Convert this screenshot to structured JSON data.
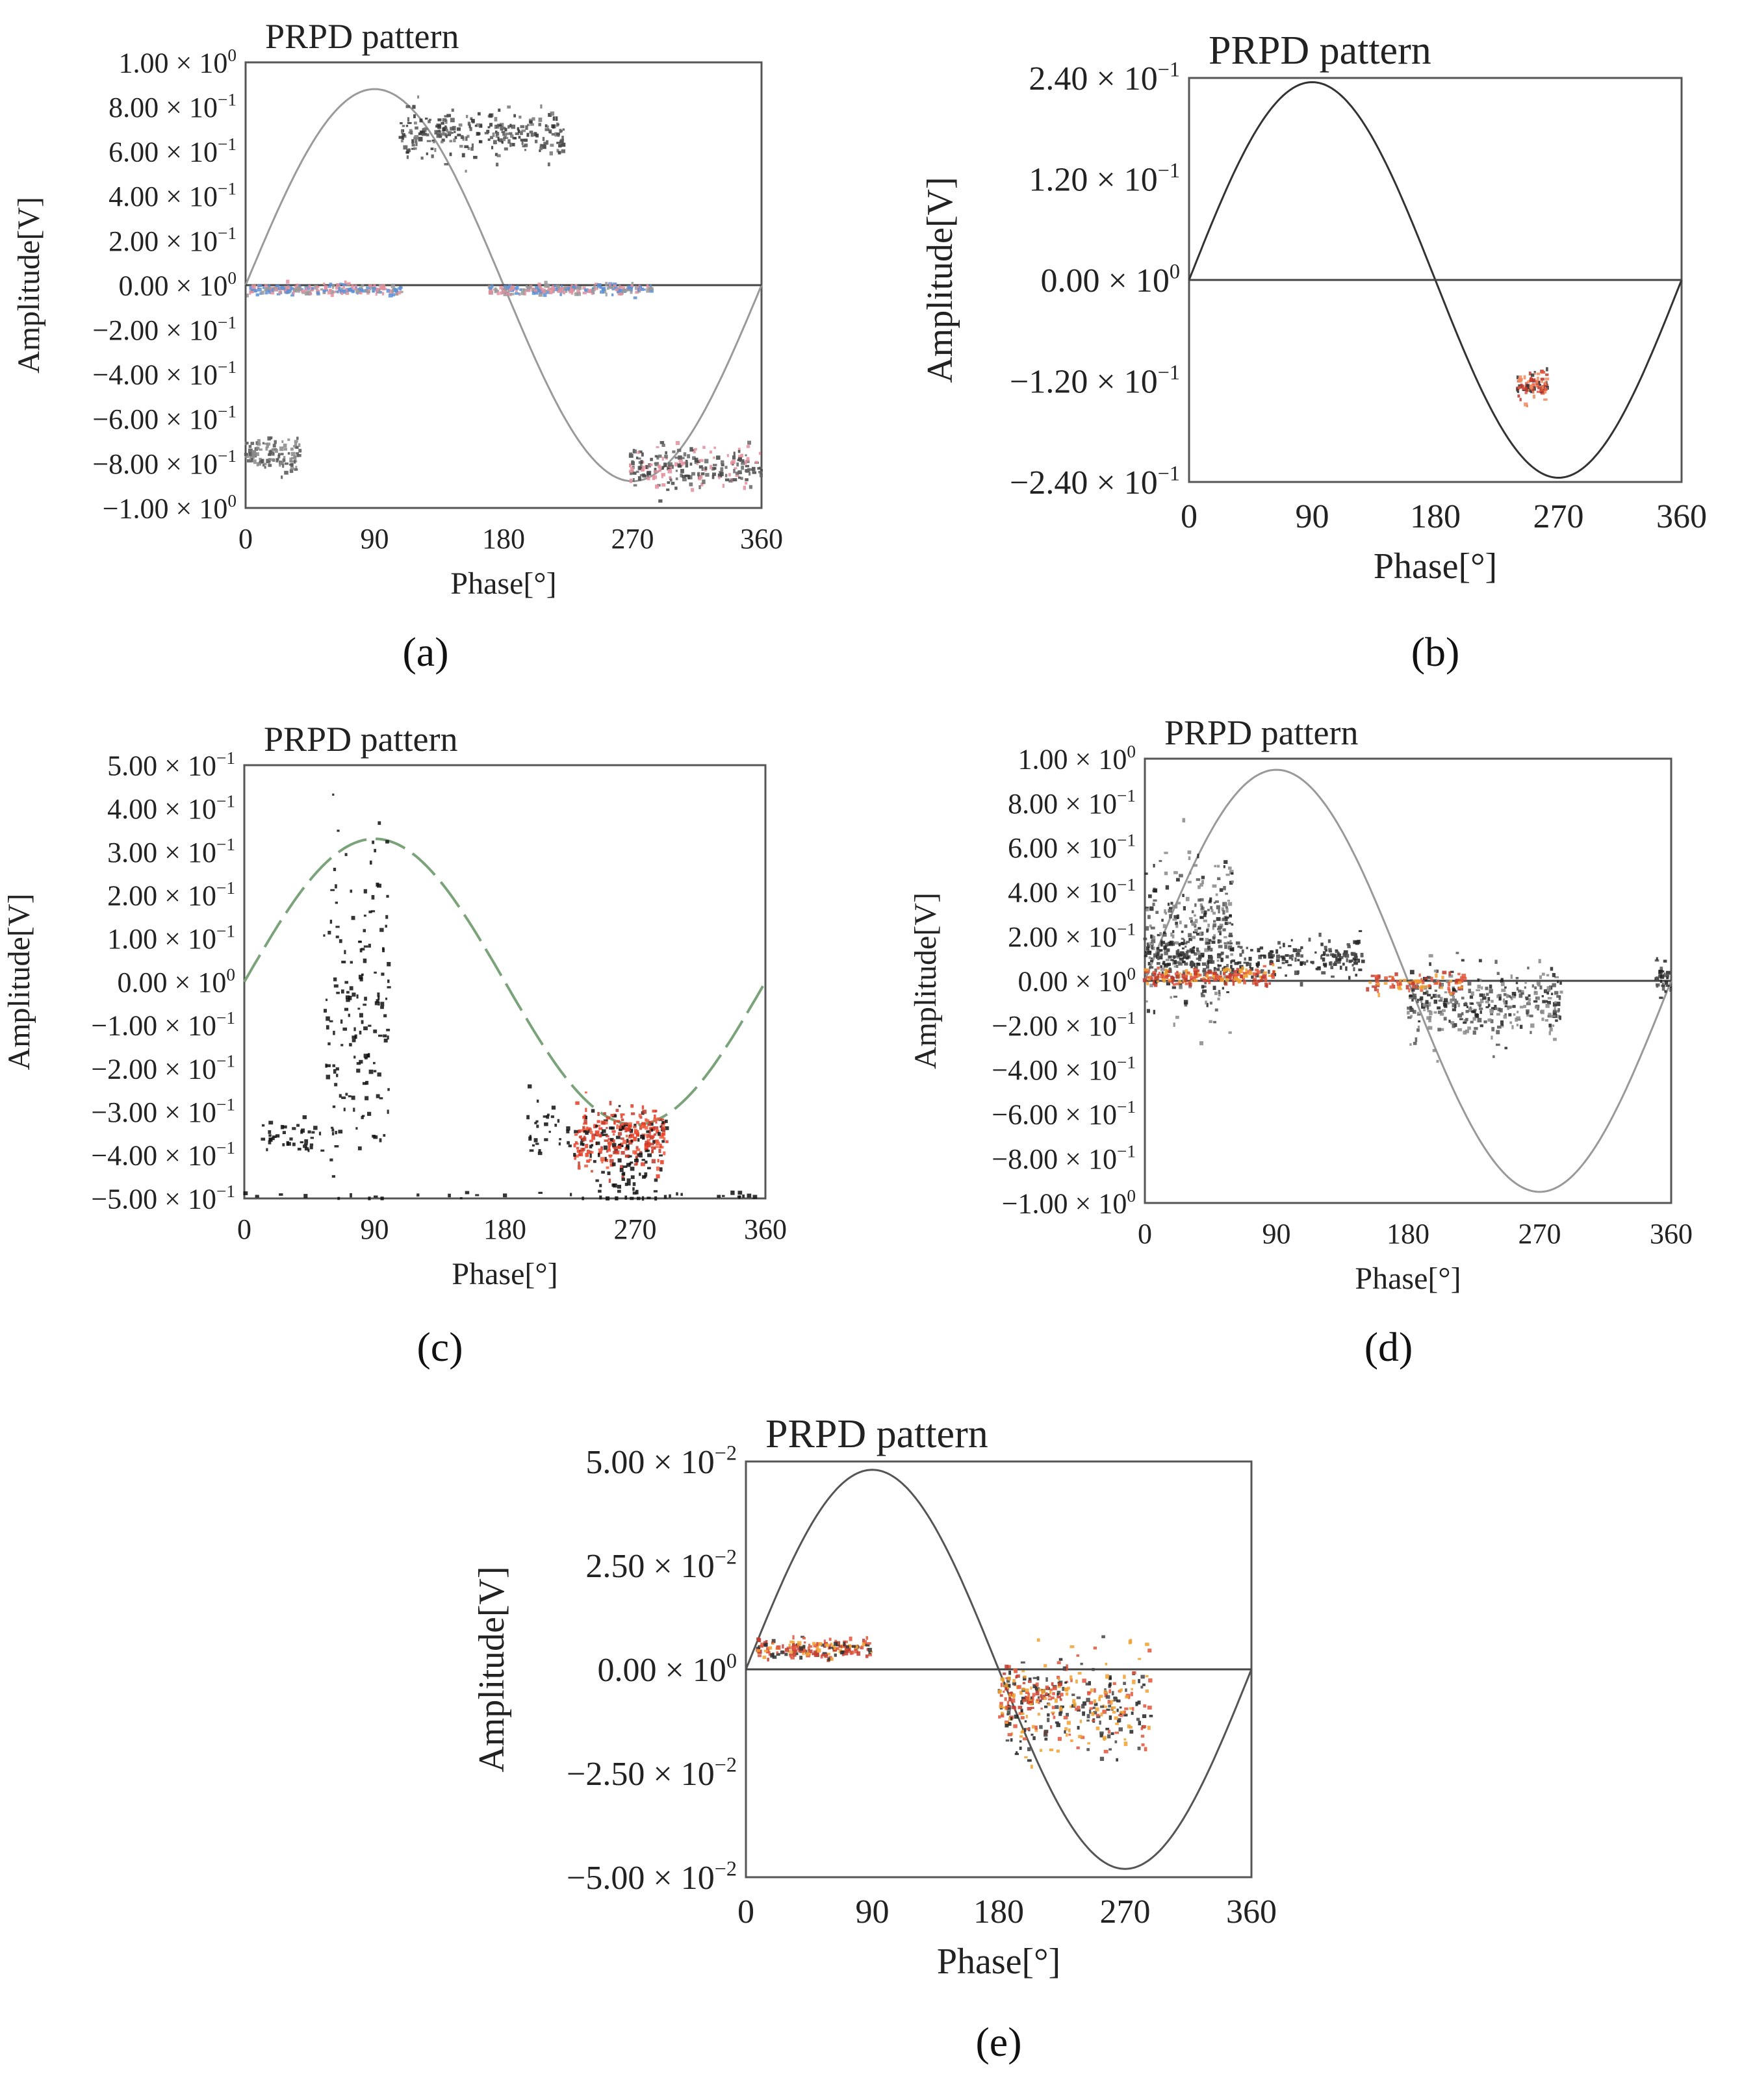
{
  "chart_data": [
    {
      "panel": "(a)",
      "type": "scatter",
      "title": "PRPD pattern",
      "xlabel": "Phase[°]",
      "ylabel": "Amplitude[V]",
      "xlim": [
        0,
        360
      ],
      "ylim": [
        -1.0,
        1.0
      ],
      "x_ticks": [
        0,
        90,
        180,
        270,
        360
      ],
      "x_tick_labels": [
        "0",
        "90",
        "180",
        "270",
        "360"
      ],
      "y_ticks": [
        1.0,
        0.8,
        0.6,
        0.4,
        0.2,
        0.0,
        -0.2,
        -0.4,
        -0.6,
        -0.8,
        -1.0
      ],
      "y_tick_labels": [
        {
          "m": "1.00",
          "e": "0"
        },
        {
          "m": "8.00",
          "e": "−1"
        },
        {
          "m": "6.00",
          "e": "−1"
        },
        {
          "m": "4.00",
          "e": "−1"
        },
        {
          "m": "2.00",
          "e": "−1"
        },
        {
          "m": "0.00",
          "e": "0"
        },
        {
          "m": "−2.00",
          "e": "−1"
        },
        {
          "m": "−4.00",
          "e": "−1"
        },
        {
          "m": "−6.00",
          "e": "−1"
        },
        {
          "m": "−8.00",
          "e": "−1"
        },
        {
          "m": "−1.00",
          "e": "0"
        }
      ],
      "reference_sine": {
        "amplitude": 0.88,
        "style": "solid",
        "color": "#9a9a9a"
      },
      "zero_line": true,
      "clusters": [
        {
          "x_range": [
            108,
            222
          ],
          "y_center": 0.68,
          "y_spread": 0.05,
          "count": 260,
          "colors": [
            "#333333",
            "#555555",
            "#777777"
          ]
        },
        {
          "x_range": [
            0,
            110
          ],
          "y_center": -0.02,
          "y_spread": 0.012,
          "count": 220,
          "colors": [
            "#e38f9c",
            "#5c8fd6",
            "#999999"
          ]
        },
        {
          "x_range": [
            170,
            285
          ],
          "y_center": -0.02,
          "y_spread": 0.012,
          "count": 220,
          "colors": [
            "#e38f9c",
            "#5c8fd6",
            "#999999"
          ]
        },
        {
          "x_range": [
            0,
            38
          ],
          "y_center": -0.76,
          "y_spread": 0.04,
          "count": 110,
          "colors": [
            "#555555",
            "#888888"
          ]
        },
        {
          "x_range": [
            268,
            360
          ],
          "y_center": -0.82,
          "y_spread": 0.05,
          "count": 230,
          "colors": [
            "#444444",
            "#666666",
            "#e38f9c"
          ]
        }
      ]
    },
    {
      "panel": "(b)",
      "type": "scatter",
      "title": "PRPD pattern",
      "xlabel": "Phase[°]",
      "ylabel": "Amplitude[V]",
      "xlim": [
        0,
        360
      ],
      "ylim": [
        -0.24,
        0.24
      ],
      "x_ticks": [
        0,
        90,
        180,
        270,
        360
      ],
      "x_tick_labels": [
        "0",
        "90",
        "180",
        "270",
        "360"
      ],
      "y_ticks": [
        0.24,
        0.12,
        0.0,
        -0.12,
        -0.24
      ],
      "y_tick_labels": [
        {
          "m": "2.40",
          "e": "−1"
        },
        {
          "m": "1.20",
          "e": "−1"
        },
        {
          "m": "0.00",
          "e": "0"
        },
        {
          "m": "−1.20",
          "e": "−1"
        },
        {
          "m": "−2.40",
          "e": "−1"
        }
      ],
      "reference_sine": {
        "amplitude": 0.235,
        "style": "solid",
        "color": "#333333"
      },
      "zero_line": true,
      "clusters": [
        {
          "x_range": [
            240,
            262
          ],
          "y_center": -0.125,
          "y_spread": 0.009,
          "count": 90,
          "colors": [
            "#e0553c",
            "#c0392b",
            "#333333",
            "#f08a5d"
          ]
        }
      ]
    },
    {
      "panel": "(c)",
      "type": "scatter",
      "title": "PRPD pattern",
      "xlabel": "Phase[°]",
      "ylabel": "Amplitude[V]",
      "xlim": [
        0,
        360
      ],
      "ylim": [
        -0.5,
        0.5
      ],
      "x_ticks": [
        0,
        90,
        180,
        270,
        360
      ],
      "x_tick_labels": [
        "0",
        "90",
        "180",
        "270",
        "360"
      ],
      "y_ticks": [
        0.5,
        0.4,
        0.3,
        0.2,
        0.1,
        0.0,
        -0.1,
        -0.2,
        -0.3,
        -0.4,
        -0.5
      ],
      "y_tick_labels": [
        {
          "m": "5.00",
          "e": "−1"
        },
        {
          "m": "4.00",
          "e": "−1"
        },
        {
          "m": "3.00",
          "e": "−1"
        },
        {
          "m": "2.00",
          "e": "−1"
        },
        {
          "m": "1.00",
          "e": "−1"
        },
        {
          "m": "0.00",
          "e": "0"
        },
        {
          "m": "−1.00",
          "e": "−1"
        },
        {
          "m": "−2.00",
          "e": "−1"
        },
        {
          "m": "−3.00",
          "e": "−1"
        },
        {
          "m": "−4.00",
          "e": "−1"
        },
        {
          "m": "−5.00",
          "e": "−1"
        }
      ],
      "reference_sine": {
        "amplitude": 0.33,
        "style": "dashed",
        "color": "#7aa37a"
      },
      "zero_line": false,
      "clusters": [
        {
          "x_range": [
            55,
            100
          ],
          "y_center": -0.05,
          "y_spread": 0.2,
          "count": 160,
          "colors": [
            "#111111"
          ]
        },
        {
          "x_range": [
            10,
            55
          ],
          "y_center": -0.36,
          "y_spread": 0.02,
          "count": 40,
          "colors": [
            "#111111"
          ]
        },
        {
          "x_range": [
            195,
            225
          ],
          "y_center": -0.33,
          "y_spread": 0.04,
          "count": 30,
          "colors": [
            "#111111"
          ]
        },
        {
          "x_range": [
            228,
            292
          ],
          "y_center": -0.36,
          "y_spread": 0.035,
          "count": 320,
          "colors": [
            "#e53b25",
            "#f05a3c",
            "#c0392b",
            "#111111"
          ]
        },
        {
          "x_range": [
            240,
            285
          ],
          "y_center": -0.44,
          "y_spread": 0.04,
          "count": 50,
          "colors": [
            "#111111"
          ]
        },
        {
          "x_range": [
            0,
            360
          ],
          "y_center": -0.495,
          "y_spread": 0.004,
          "count": 30,
          "colors": [
            "#111111"
          ]
        }
      ]
    },
    {
      "panel": "(d)",
      "type": "scatter",
      "title": "PRPD pattern",
      "xlabel": "Phase[°]",
      "ylabel": "Amplitude[V]",
      "xlim": [
        0,
        360
      ],
      "ylim": [
        -1.0,
        1.0
      ],
      "x_ticks": [
        0,
        90,
        180,
        270,
        360
      ],
      "x_tick_labels": [
        "0",
        "90",
        "180",
        "270",
        "360"
      ],
      "y_ticks": [
        1.0,
        0.8,
        0.6,
        0.4,
        0.2,
        0.0,
        -0.2,
        -0.4,
        -0.6,
        -0.8,
        -1.0
      ],
      "y_tick_labels": [
        {
          "m": "1.00",
          "e": "0"
        },
        {
          "m": "8.00",
          "e": "−1"
        },
        {
          "m": "6.00",
          "e": "−1"
        },
        {
          "m": "4.00",
          "e": "−1"
        },
        {
          "m": "2.00",
          "e": "−1"
        },
        {
          "m": "0.00",
          "e": "0"
        },
        {
          "m": "−2.00",
          "e": "−1"
        },
        {
          "m": "−4.00",
          "e": "−1"
        },
        {
          "m": "−6.00",
          "e": "−1"
        },
        {
          "m": "−8.00",
          "e": "−1"
        },
        {
          "m": "−1.00",
          "e": "0"
        }
      ],
      "reference_sine": {
        "amplitude": 0.95,
        "style": "solid",
        "color": "#999999"
      },
      "zero_line": true,
      "clusters": [
        {
          "x_range": [
            0,
            60
          ],
          "y_center": 0.2,
          "y_spread": 0.16,
          "count": 320,
          "colors": [
            "#222222",
            "#555555",
            "#888888"
          ]
        },
        {
          "x_range": [
            0,
            150
          ],
          "y_center": 0.1,
          "y_spread": 0.04,
          "count": 260,
          "colors": [
            "#222222",
            "#444444"
          ]
        },
        {
          "x_range": [
            0,
            90
          ],
          "y_center": 0.02,
          "y_spread": 0.02,
          "count": 180,
          "colors": [
            "#e0553c",
            "#f0a030",
            "#c0392b"
          ]
        },
        {
          "x_range": [
            180,
            285
          ],
          "y_center": -0.1,
          "y_spread": 0.08,
          "count": 330,
          "colors": [
            "#222222",
            "#555555",
            "#888888"
          ]
        },
        {
          "x_range": [
            150,
            220
          ],
          "y_center": -0.01,
          "y_spread": 0.02,
          "count": 90,
          "colors": [
            "#e0553c",
            "#f0a030",
            "#c0392b"
          ]
        },
        {
          "x_range": [
            350,
            360
          ],
          "y_center": 0.02,
          "y_spread": 0.04,
          "count": 30,
          "colors": [
            "#222222",
            "#555555"
          ]
        }
      ]
    },
    {
      "panel": "(e)",
      "type": "scatter",
      "title": "PRPD pattern",
      "xlabel": "Phase[°]",
      "ylabel": "Amplitude[V]",
      "xlim": [
        0,
        360
      ],
      "ylim": [
        -0.05,
        0.05
      ],
      "x_ticks": [
        0,
        90,
        180,
        270,
        360
      ],
      "x_tick_labels": [
        "0",
        "90",
        "180",
        "270",
        "360"
      ],
      "y_ticks": [
        0.05,
        0.025,
        0.0,
        -0.025,
        -0.05
      ],
      "y_tick_labels": [
        {
          "m": "5.00",
          "e": "−2"
        },
        {
          "m": "2.50",
          "e": "−2"
        },
        {
          "m": "0.00",
          "e": "0"
        },
        {
          "m": "−2.50",
          "e": "−2"
        },
        {
          "m": "−5.00",
          "e": "−2"
        }
      ],
      "reference_sine": {
        "amplitude": 0.048,
        "style": "solid",
        "color": "#555555"
      },
      "zero_line": true,
      "clusters": [
        {
          "x_range": [
            8,
            90
          ],
          "y_center": 0.005,
          "y_spread": 0.0012,
          "count": 180,
          "colors": [
            "#e0553c",
            "#c0392b",
            "#333333",
            "#f0a030"
          ]
        },
        {
          "x_range": [
            180,
            290
          ],
          "y_center": -0.009,
          "y_spread": 0.006,
          "count": 320,
          "colors": [
            "#222222",
            "#444444",
            "#e0553c",
            "#f0a030"
          ]
        },
        {
          "x_range": [
            180,
            225
          ],
          "y_center": -0.006,
          "y_spread": 0.003,
          "count": 90,
          "colors": [
            "#e0553c",
            "#f0a030",
            "#c0392b"
          ]
        }
      ]
    }
  ]
}
